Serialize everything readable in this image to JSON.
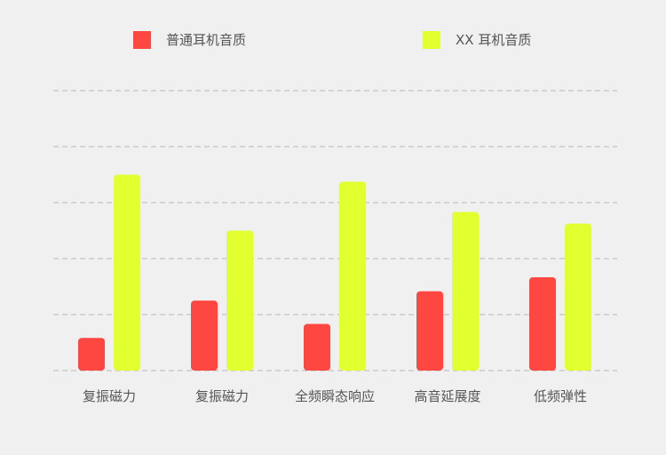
{
  "colors": {
    "background": "#f0f0f0",
    "grid": "#b8b8b8",
    "text": "#555555",
    "series_1": "#ff4742",
    "series_2": "#e2ff30"
  },
  "chart_data": {
    "type": "bar",
    "title": "",
    "xlabel": "",
    "ylabel": "",
    "ylim": [
      0,
      6
    ],
    "grid": true,
    "legend_position": "top",
    "categories": [
      "复振磁力",
      "复振磁力",
      "全频瞬态响应",
      "高音延展度",
      "低频弹性"
    ],
    "series": [
      {
        "name": "普通耳机音质",
        "color": "#ff4742",
        "values": [
          0.7,
          1.5,
          1.0,
          1.7,
          2.0
        ]
      },
      {
        "name": "XX 耳机音质",
        "color": "#e2ff30",
        "values": [
          4.2,
          3.0,
          4.05,
          3.4,
          3.15
        ]
      }
    ]
  }
}
